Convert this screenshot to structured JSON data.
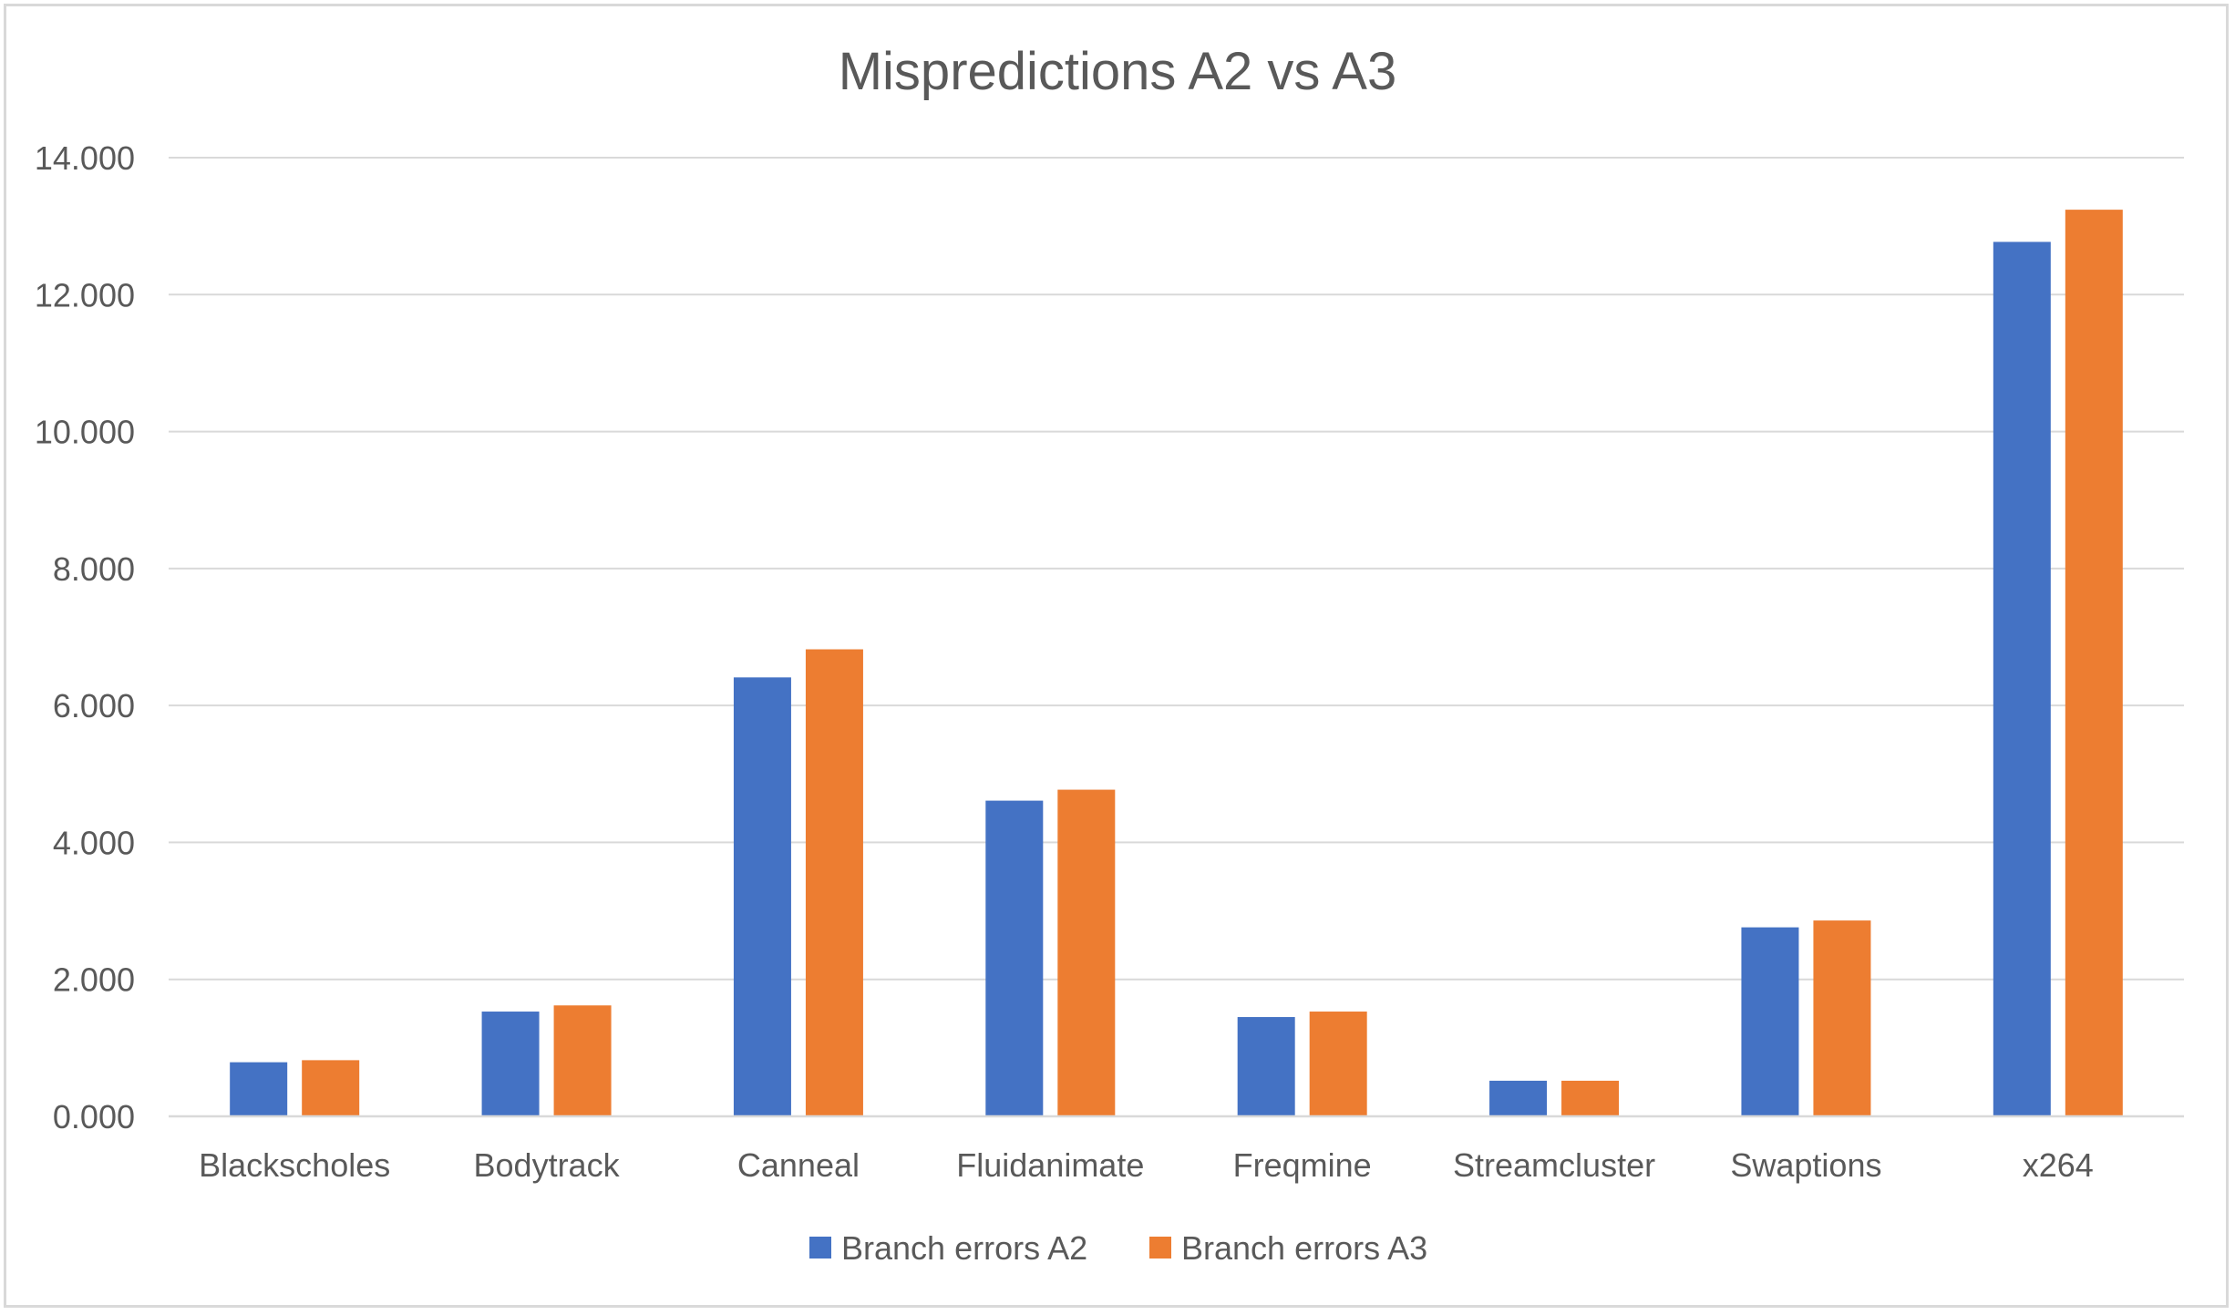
{
  "chart_data": {
    "type": "bar",
    "title": "Mispredictions A2 vs A3",
    "xlabel": "",
    "ylabel": "",
    "categories": [
      "Blackscholes",
      "Bodytrack",
      "Canneal",
      "Fluidanimate",
      "Freqmine",
      "Streamcluster",
      "Swaptions",
      "x264"
    ],
    "series": [
      {
        "name": "Branch errors A2",
        "color": "#4472c4",
        "values": [
          0.79,
          1.53,
          6.41,
          4.61,
          1.45,
          0.52,
          2.76,
          12.77
        ]
      },
      {
        "name": "Branch errors A3",
        "color": "#ed7d31",
        "values": [
          0.82,
          1.62,
          6.82,
          4.77,
          1.53,
          0.52,
          2.86,
          13.24
        ]
      }
    ],
    "ylim": [
      0,
      14
    ],
    "yticks": [
      0,
      2,
      4,
      6,
      8,
      10,
      12,
      14
    ],
    "ytick_labels": [
      "0.000",
      "2.000",
      "4.000",
      "6.000",
      "8.000",
      "10.000",
      "12.000",
      "14.000"
    ],
    "grid": true,
    "legend_position": "bottom"
  }
}
